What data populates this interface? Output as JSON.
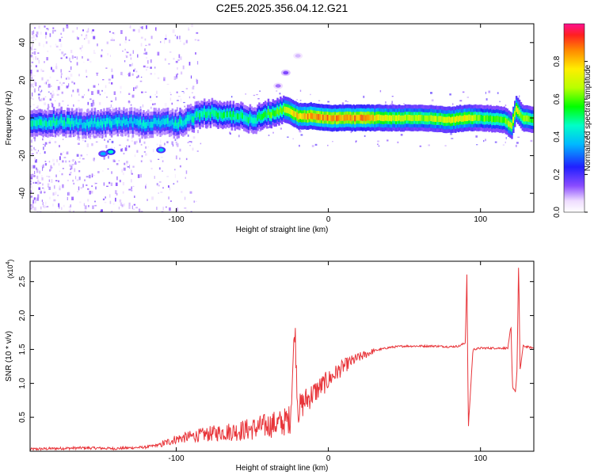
{
  "title": "C2E5.2025.356.04.12.G21",
  "chart_data": [
    {
      "type": "heatmap",
      "xlabel": "Height of straight line (km)",
      "ylabel": "Frequency (Hz)",
      "xlim": [
        -196,
        135
      ],
      "ylim": [
        -50,
        50
      ],
      "xticks": [
        -100,
        0,
        100
      ],
      "xtick_labels": [
        "-100",
        "0",
        "100"
      ],
      "yticks": [
        -40,
        -20,
        0,
        20,
        40
      ],
      "ytick_labels": [
        "-40",
        "-20",
        "0",
        "20",
        "40"
      ],
      "colorbar": {
        "label": "Normalized spectral amplitude",
        "range": [
          0,
          1
        ],
        "ticks": [
          0.0,
          0.2,
          0.4,
          0.6,
          0.8
        ],
        "tick_labels": [
          "0.0",
          "0.2",
          "0.4",
          "0.6",
          "0.8"
        ]
      },
      "ridge": {
        "x": [
          -196,
          -180,
          -160,
          -140,
          -120,
          -110,
          -100,
          -90,
          -80,
          -70,
          -60,
          -50,
          -40,
          -30,
          -20,
          -10,
          0,
          20,
          40,
          60,
          80,
          90,
          100,
          115,
          120,
          123,
          127,
          135
        ],
        "freq": [
          -4,
          -2,
          -3,
          -2,
          -3,
          -2,
          -3,
          0,
          3,
          2,
          1,
          -1,
          2,
          5,
          1,
          1,
          0,
          0,
          0,
          0,
          -1,
          0,
          0,
          -1,
          -4,
          5,
          0,
          -1
        ],
        "amplitude": [
          0.45,
          0.45,
          0.4,
          0.42,
          0.4,
          0.42,
          0.45,
          0.45,
          0.5,
          0.5,
          0.5,
          0.5,
          0.55,
          0.65,
          0.8,
          0.85,
          0.85,
          0.85,
          0.7,
          0.65,
          0.7,
          0.75,
          0.6,
          0.6,
          0.7,
          0.75,
          0.65,
          0.6
        ]
      },
      "spots": [
        {
          "x": -143,
          "freq": -18,
          "amplitude": 0.45
        },
        {
          "x": -148,
          "freq": -19,
          "amplitude": 0.35
        },
        {
          "x": -110,
          "freq": -17,
          "amplitude": 0.4
        },
        {
          "x": -28,
          "freq": 24,
          "amplitude": 0.15
        },
        {
          "x": -33,
          "freq": 17,
          "amplitude": 0.12
        },
        {
          "x": -20,
          "freq": 33,
          "amplitude": 0.08
        }
      ]
    },
    {
      "type": "line",
      "xlabel": "Height of straight line (km)",
      "ylabel": "SNR (10 * v/v)",
      "scale_label": "(x10",
      "scale_exponent": "4",
      "xlim": [
        -196,
        135
      ],
      "ylim": [
        0,
        2.8
      ],
      "xticks": [
        -100,
        0,
        100
      ],
      "xtick_labels": [
        "-100",
        "0",
        "100"
      ],
      "yticks": [
        0.5,
        1.0,
        1.5,
        2.0,
        2.5
      ],
      "ytick_labels": [
        "0.5",
        "1.0",
        "1.5",
        "2.0",
        "2.5"
      ],
      "series": [
        {
          "name": "SNR",
          "color": "#e8353a",
          "x": [
            -196,
            -180,
            -160,
            -140,
            -130,
            -120,
            -110,
            -100,
            -90,
            -80,
            -70,
            -60,
            -50,
            -40,
            -30,
            -25,
            -22,
            -20,
            -15,
            -10,
            -5,
            0,
            5,
            10,
            15,
            20,
            30,
            40,
            50,
            60,
            70,
            80,
            86,
            90,
            91,
            92,
            95,
            100,
            110,
            118,
            120,
            121,
            123,
            124,
            125,
            126,
            128,
            135
          ],
          "y": [
            0.03,
            0.04,
            0.05,
            0.04,
            0.05,
            0.06,
            0.1,
            0.18,
            0.22,
            0.25,
            0.28,
            0.3,
            0.33,
            0.38,
            0.42,
            0.48,
            1.85,
            0.6,
            0.75,
            0.85,
            0.95,
            1.05,
            1.15,
            1.25,
            1.32,
            1.38,
            1.48,
            1.53,
            1.55,
            1.55,
            1.55,
            1.54,
            1.55,
            1.6,
            2.6,
            0.35,
            1.5,
            1.52,
            1.52,
            1.52,
            1.85,
            0.95,
            0.88,
            1.2,
            2.78,
            1.2,
            1.55,
            1.52
          ]
        }
      ]
    }
  ]
}
